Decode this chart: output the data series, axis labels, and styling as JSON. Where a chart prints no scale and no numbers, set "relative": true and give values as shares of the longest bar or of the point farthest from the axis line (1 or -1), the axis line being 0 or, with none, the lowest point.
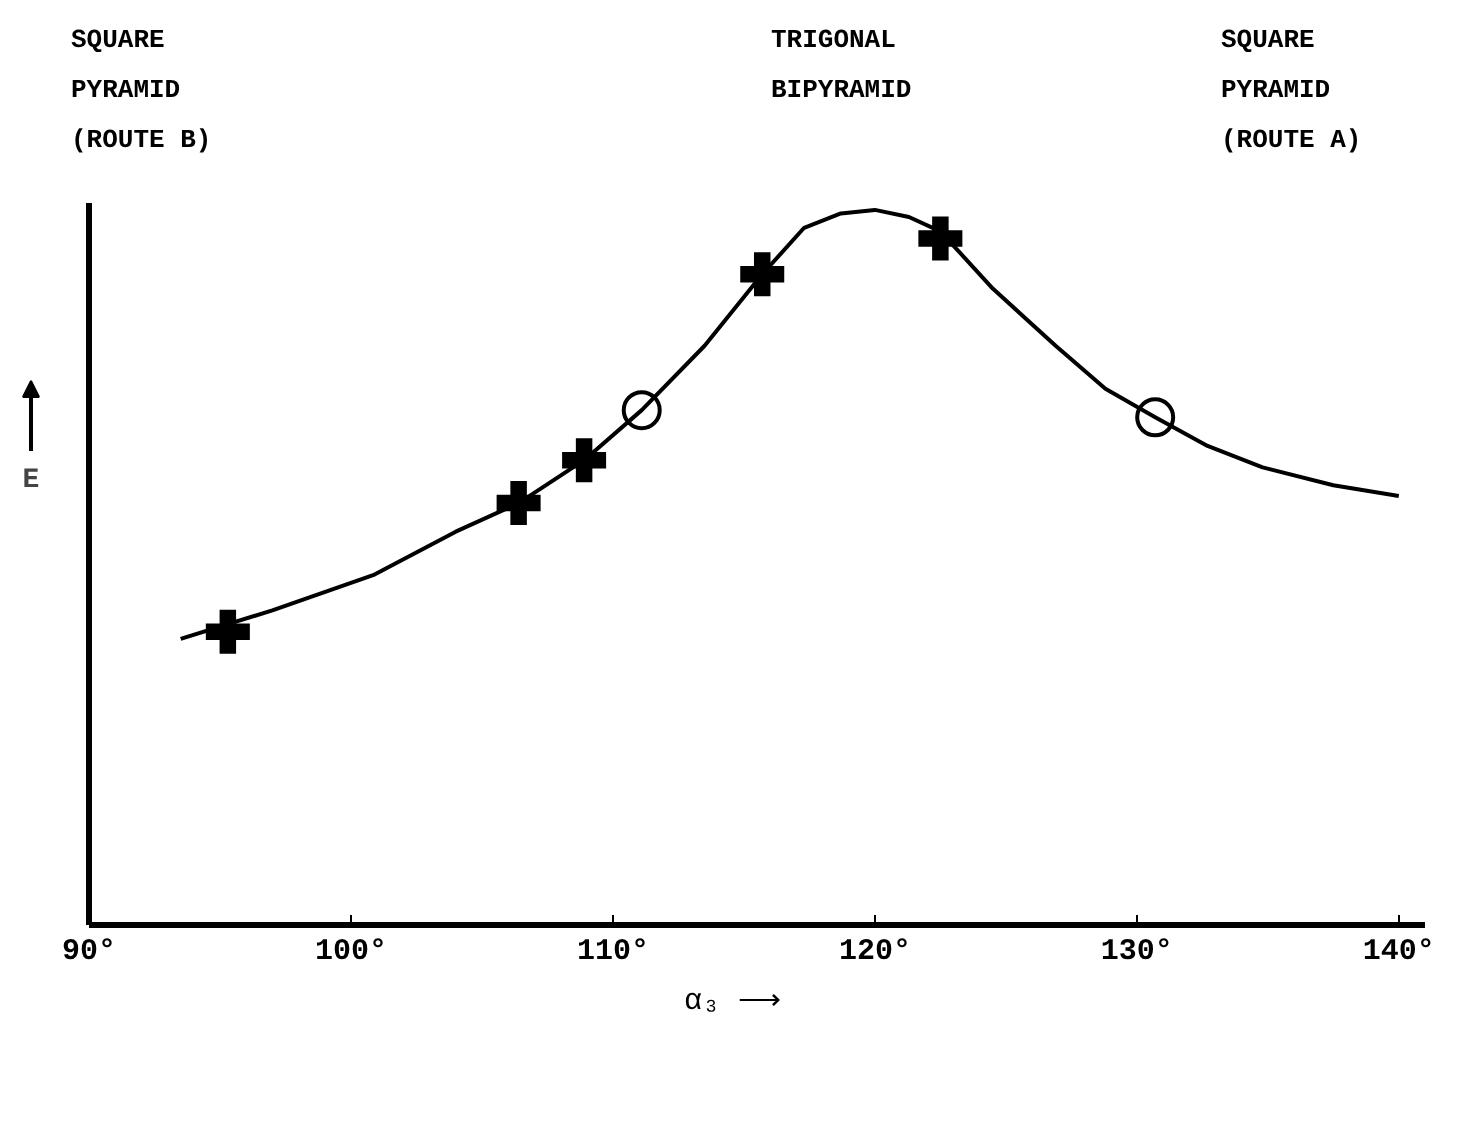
{
  "chart_data": {
    "type": "line",
    "relative": true,
    "xlabel": "α₃ ⟶",
    "ylabel": "E",
    "xlim": [
      90,
      141
    ],
    "xticks": [
      {
        "value": 90,
        "label": "90°"
      },
      {
        "value": 100,
        "label": "100°"
      },
      {
        "value": 110,
        "label": "110°"
      },
      {
        "value": 120,
        "label": "120°"
      },
      {
        "value": 130,
        "label": "130°"
      },
      {
        "value": 140,
        "label": "140°"
      }
    ],
    "annotations": [
      "SQUARE\nPYRAMID\n(ROUTE B)",
      "TRIGONAL\nBIPYRAMID",
      "SQUARE\nPYRAMID\n(ROUTE A)"
    ],
    "grid": false,
    "series": [
      {
        "color": "#000000",
        "marker": "none",
        "line_style": "solid",
        "x": [
          93.5,
          97.0,
          100.9,
          104.0,
          106.4,
          108.9,
          111.1,
          113.5,
          115.7,
          117.3,
          118.7,
          120.0,
          121.3,
          122.5,
          124.5,
          126.9,
          128.8,
          130.7,
          132.7,
          134.8,
          137.5,
          140.0
        ],
        "values": [
          0.4,
          0.44,
          0.49,
          0.55,
          0.59,
          0.65,
          0.72,
          0.81,
          0.91,
          0.975,
          0.995,
          1.0,
          0.99,
          0.97,
          0.89,
          0.81,
          0.75,
          0.71,
          0.67,
          0.64,
          0.615,
          0.6
        ]
      },
      {
        "type": "scatter",
        "color": "#000000",
        "marker": "cross",
        "x": [
          95.3,
          106.4,
          108.9,
          115.7,
          122.5
        ],
        "values": [
          0.41,
          0.59,
          0.65,
          0.91,
          0.96
        ]
      },
      {
        "type": "scatter",
        "color": "#000000",
        "marker": "circle",
        "x": [
          111.1,
          130.7
        ],
        "values": [
          0.72,
          0.71
        ]
      }
    ]
  }
}
